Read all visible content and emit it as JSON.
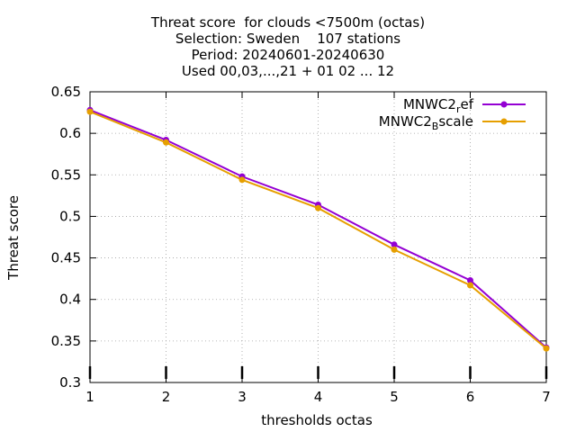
{
  "chart_data": {
    "type": "line",
    "title_lines": [
      "Threat score  for clouds <7500m (octas)",
      "Selection: Sweden    107 stations",
      "Period: 20240601-20240630",
      "Used 00,03,...,21 + 01 02 ... 12"
    ],
    "xlabel": "thresholds octas",
    "ylabel": "Threat score",
    "x": [
      1,
      2,
      3,
      4,
      5,
      6,
      7
    ],
    "xlim": [
      1,
      7
    ],
    "ylim": [
      0.3,
      0.65
    ],
    "x_ticks": [
      "1",
      "2",
      "3",
      "4",
      "5",
      "6",
      "7"
    ],
    "y_ticks": [
      "0.3",
      "0.35",
      "0.4",
      "0.45",
      "0.5",
      "0.55",
      "0.6",
      "0.65"
    ],
    "grid": true,
    "legend_position": "top-right",
    "series": [
      {
        "name": "MNWC2_ref",
        "legend_main": "MNWC2",
        "legend_sub": "r",
        "legend_rest": "ef",
        "color": "#9400d3",
        "values": [
          0.628,
          0.592,
          0.548,
          0.514,
          0.466,
          0.423,
          0.342
        ]
      },
      {
        "name": "MNWC2_Bscale",
        "legend_main": "MNWC2",
        "legend_sub": "B",
        "legend_rest": "scale",
        "color": "#e69f00",
        "values": [
          0.626,
          0.589,
          0.544,
          0.51,
          0.46,
          0.417,
          0.341
        ]
      }
    ]
  }
}
